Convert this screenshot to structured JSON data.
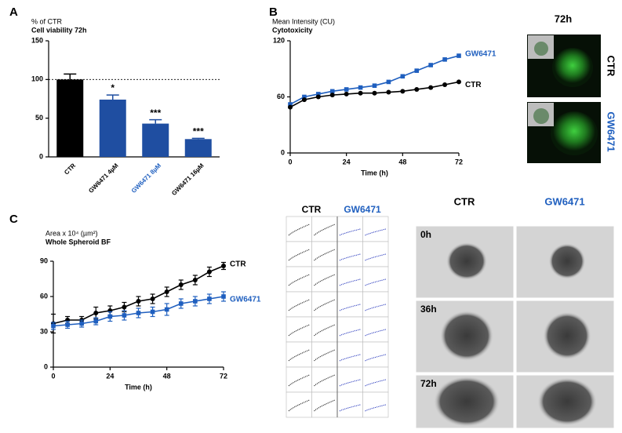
{
  "panel_labels": [
    "A",
    "B",
    "C"
  ],
  "chart_data": [
    {
      "type": "bar",
      "ylabel": "% of CTR",
      "title": "Cell viability 72h",
      "categories": [
        "CTR",
        "GW6471 4µM",
        "GW6471 8µM",
        "GW6471 16µM"
      ],
      "values": [
        100,
        74,
        43,
        23
      ],
      "errors": [
        7,
        6,
        5,
        1
      ],
      "annotations": [
        null,
        "*",
        "***",
        "***"
      ],
      "colors": [
        "#000000",
        "#1f4ea1",
        "#1f4ea1",
        "#1f4ea1"
      ],
      "label_colors": [
        "#000000",
        "#000000",
        "#1f5fbf",
        "#000000"
      ],
      "ylim": [
        0,
        150
      ],
      "yticks": [
        0,
        50,
        100,
        150
      ],
      "reference_line": 100
    },
    {
      "type": "line",
      "ylabel": "Mean Intensity (CU)",
      "title": "Cytotoxicity",
      "xlabel": "Time (h)",
      "x": [
        0,
        6,
        12,
        18,
        24,
        30,
        36,
        42,
        48,
        54,
        60,
        66,
        72
      ],
      "series": [
        {
          "name": "GW6471",
          "color": "#1f5fbf",
          "marker": "square",
          "values": [
            52,
            60,
            63,
            66,
            68,
            70,
            72,
            76,
            82,
            88,
            94,
            100,
            104
          ]
        },
        {
          "name": "CTR",
          "color": "#000000",
          "marker": "circle",
          "values": [
            49,
            57,
            60,
            62,
            63,
            64,
            64,
            65,
            66,
            68,
            70,
            73,
            76
          ]
        }
      ],
      "xlim": [
        0,
        72
      ],
      "xticks": [
        0,
        24,
        48,
        72
      ],
      "ylim": [
        0,
        120
      ],
      "yticks": [
        0,
        60,
        120
      ]
    },
    {
      "type": "line",
      "ylabel": "Area x 10⁴ (µm²)",
      "title": "Whole Spheroid BF",
      "xlabel": "Time (h)",
      "x": [
        0,
        6,
        12,
        18,
        24,
        30,
        36,
        42,
        48,
        54,
        60,
        66,
        72
      ],
      "series": [
        {
          "name": "CTR",
          "color": "#000000",
          "marker": "circle",
          "values": [
            37,
            40,
            40,
            46,
            48,
            51,
            56,
            58,
            64,
            70,
            74,
            81,
            86
          ],
          "errors": [
            8,
            3,
            3,
            5,
            4,
            4,
            4,
            4,
            4,
            4,
            4,
            4,
            3
          ]
        },
        {
          "name": "GW6471",
          "color": "#1f5fbf",
          "marker": "square",
          "values": [
            35,
            36,
            37,
            39,
            43,
            44,
            46,
            47,
            49,
            54,
            56,
            58,
            60
          ],
          "errors": [
            3,
            3,
            3,
            3,
            4,
            4,
            4,
            4,
            5,
            4,
            4,
            4,
            4
          ]
        }
      ],
      "xlim": [
        0,
        72
      ],
      "xticks": [
        0,
        24,
        48,
        72
      ],
      "ylim": [
        0,
        90
      ],
      "yticks": [
        0,
        30,
        60,
        90
      ]
    }
  ],
  "fluorescence_panel": {
    "title": "72h",
    "rows": [
      "CTR",
      "GW6471"
    ]
  },
  "trace_grid": {
    "columns": [
      "CTR",
      "GW6471"
    ]
  },
  "brightfield_panel": {
    "columns": [
      "CTR",
      "GW6471"
    ],
    "rows": [
      "0h",
      "36h",
      "72h"
    ]
  }
}
